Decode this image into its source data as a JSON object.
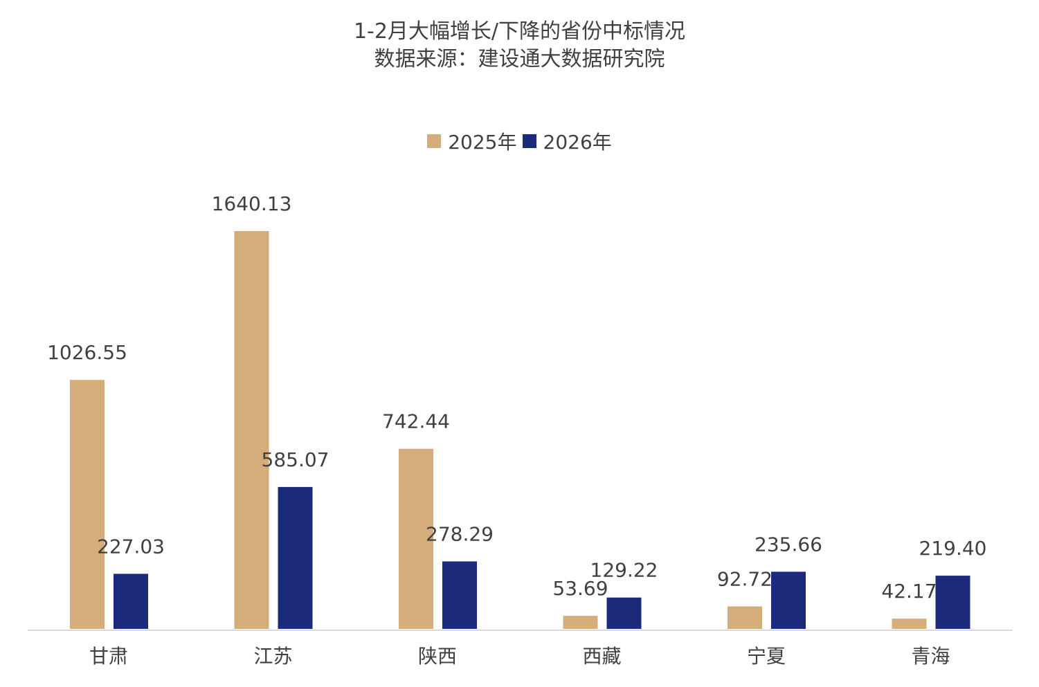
{
  "title": "1-2月大幅增长/下降的省份中标情况",
  "subtitle": "数据来源：建设通大数据研究院",
  "colors": {
    "s2025": "#D4AD7A",
    "s2026": "#1C2A7C",
    "axis": "#d9d9d9",
    "text": "#404040"
  },
  "chart_data": {
    "type": "bar",
    "title": "1-2月大幅增长/下降的省份中标情况",
    "subtitle": "数据来源：建设通大数据研究院",
    "categories": [
      "甘肃",
      "江苏",
      "陕西",
      "西藏",
      "宁夏",
      "青海"
    ],
    "series": [
      {
        "name": "2025年",
        "values": [
          1026.55,
          1640.13,
          742.44,
          53.69,
          92.72,
          42.17
        ],
        "labels": [
          "1026.55",
          "1640.13",
          "742.44",
          "53.69",
          "92.72",
          "42.17"
        ]
      },
      {
        "name": "2026年",
        "values": [
          227.03,
          585.07,
          278.29,
          129.22,
          235.66,
          219.4
        ],
        "labels": [
          "227.03",
          "585.07",
          "278.29",
          "129.22",
          "235.66",
          "219.40"
        ]
      }
    ],
    "ylim": [
      0,
      1640.13
    ],
    "legend": "top-center",
    "grid": false,
    "xlabel": "",
    "ylabel": ""
  }
}
